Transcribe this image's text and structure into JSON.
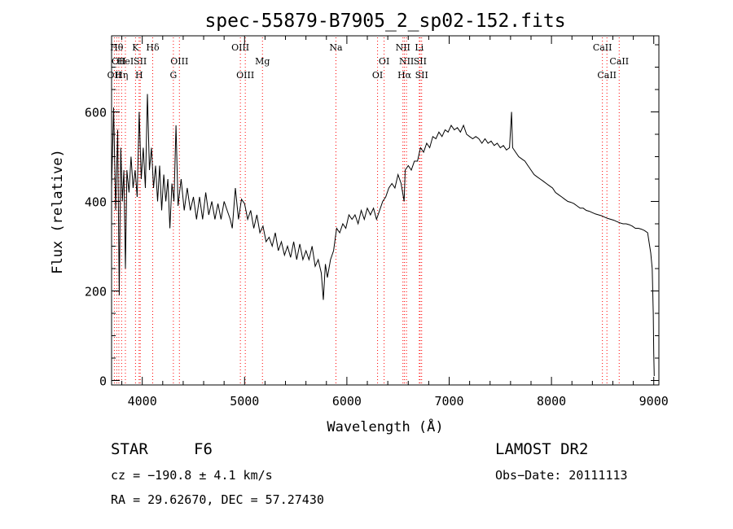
{
  "chart_data": {
    "type": "line",
    "title": "spec-55879-B7905_2_sp02-152.fits",
    "xlabel": "Wavelength (Å)",
    "ylabel": "Flux (relative)",
    "xlim": [
      3700,
      9050
    ],
    "ylim": [
      -10,
      770
    ],
    "x_ticks": [
      4000,
      5000,
      6000,
      7000,
      8000,
      9000
    ],
    "y_ticks": [
      0,
      200,
      400,
      600
    ],
    "line_color": "#000000",
    "marker_color": "#ff0000",
    "series": [
      {
        "points": [
          [
            3700,
            430
          ],
          [
            3720,
            610
          ],
          [
            3740,
            380
          ],
          [
            3760,
            560
          ],
          [
            3775,
            190
          ],
          [
            3790,
            520
          ],
          [
            3805,
            400
          ],
          [
            3820,
            470
          ],
          [
            3835,
            250
          ],
          [
            3850,
            470
          ],
          [
            3870,
            420
          ],
          [
            3890,
            500
          ],
          [
            3910,
            430
          ],
          [
            3930,
            470
          ],
          [
            3950,
            410
          ],
          [
            3970,
            600
          ],
          [
            3990,
            450
          ],
          [
            4010,
            520
          ],
          [
            4030,
            430
          ],
          [
            4050,
            640
          ],
          [
            4070,
            470
          ],
          [
            4090,
            520
          ],
          [
            4110,
            430
          ],
          [
            4130,
            480
          ],
          [
            4150,
            400
          ],
          [
            4170,
            480
          ],
          [
            4190,
            380
          ],
          [
            4210,
            460
          ],
          [
            4230,
            400
          ],
          [
            4250,
            450
          ],
          [
            4270,
            340
          ],
          [
            4290,
            440
          ],
          [
            4310,
            400
          ],
          [
            4330,
            570
          ],
          [
            4350,
            390
          ],
          [
            4380,
            450
          ],
          [
            4410,
            380
          ],
          [
            4440,
            430
          ],
          [
            4470,
            380
          ],
          [
            4500,
            410
          ],
          [
            4530,
            360
          ],
          [
            4560,
            410
          ],
          [
            4590,
            360
          ],
          [
            4620,
            420
          ],
          [
            4650,
            370
          ],
          [
            4680,
            400
          ],
          [
            4710,
            360
          ],
          [
            4740,
            395
          ],
          [
            4770,
            360
          ],
          [
            4800,
            400
          ],
          [
            4830,
            380
          ],
          [
            4860,
            360
          ],
          [
            4880,
            340
          ],
          [
            4910,
            430
          ],
          [
            4940,
            360
          ],
          [
            4970,
            405
          ],
          [
            5000,
            395
          ],
          [
            5030,
            360
          ],
          [
            5060,
            380
          ],
          [
            5090,
            340
          ],
          [
            5120,
            370
          ],
          [
            5150,
            330
          ],
          [
            5180,
            345
          ],
          [
            5210,
            310
          ],
          [
            5240,
            320
          ],
          [
            5270,
            300
          ],
          [
            5300,
            330
          ],
          [
            5330,
            290
          ],
          [
            5360,
            310
          ],
          [
            5390,
            280
          ],
          [
            5420,
            300
          ],
          [
            5450,
            275
          ],
          [
            5480,
            310
          ],
          [
            5510,
            270
          ],
          [
            5540,
            305
          ],
          [
            5570,
            270
          ],
          [
            5600,
            290
          ],
          [
            5630,
            270
          ],
          [
            5660,
            300
          ],
          [
            5690,
            255
          ],
          [
            5720,
            270
          ],
          [
            5750,
            240
          ],
          [
            5770,
            180
          ],
          [
            5790,
            260
          ],
          [
            5810,
            230
          ],
          [
            5840,
            270
          ],
          [
            5870,
            290
          ],
          [
            5900,
            340
          ],
          [
            5930,
            330
          ],
          [
            5960,
            350
          ],
          [
            5990,
            340
          ],
          [
            6020,
            370
          ],
          [
            6050,
            360
          ],
          [
            6080,
            370
          ],
          [
            6110,
            350
          ],
          [
            6140,
            380
          ],
          [
            6170,
            360
          ],
          [
            6200,
            385
          ],
          [
            6230,
            370
          ],
          [
            6260,
            385
          ],
          [
            6290,
            360
          ],
          [
            6320,
            380
          ],
          [
            6350,
            400
          ],
          [
            6380,
            410
          ],
          [
            6410,
            430
          ],
          [
            6440,
            440
          ],
          [
            6470,
            430
          ],
          [
            6500,
            460
          ],
          [
            6530,
            440
          ],
          [
            6560,
            400
          ],
          [
            6570,
            470
          ],
          [
            6600,
            480
          ],
          [
            6630,
            470
          ],
          [
            6660,
            490
          ],
          [
            6690,
            490
          ],
          [
            6720,
            520
          ],
          [
            6750,
            510
          ],
          [
            6780,
            530
          ],
          [
            6810,
            520
          ],
          [
            6840,
            545
          ],
          [
            6870,
            540
          ],
          [
            6900,
            555
          ],
          [
            6930,
            545
          ],
          [
            6960,
            560
          ],
          [
            6990,
            555
          ],
          [
            7020,
            570
          ],
          [
            7050,
            560
          ],
          [
            7080,
            565
          ],
          [
            7110,
            555
          ],
          [
            7140,
            570
          ],
          [
            7170,
            550
          ],
          [
            7200,
            545
          ],
          [
            7230,
            540
          ],
          [
            7260,
            545
          ],
          [
            7290,
            540
          ],
          [
            7320,
            530
          ],
          [
            7350,
            540
          ],
          [
            7380,
            530
          ],
          [
            7410,
            535
          ],
          [
            7440,
            525
          ],
          [
            7470,
            530
          ],
          [
            7500,
            520
          ],
          [
            7530,
            525
          ],
          [
            7560,
            515
          ],
          [
            7590,
            520
          ],
          [
            7610,
            600
          ],
          [
            7620,
            520
          ],
          [
            7650,
            510
          ],
          [
            7680,
            500
          ],
          [
            7710,
            495
          ],
          [
            7740,
            490
          ],
          [
            7770,
            480
          ],
          [
            7800,
            470
          ],
          [
            7830,
            460
          ],
          [
            7860,
            455
          ],
          [
            7890,
            450
          ],
          [
            7920,
            445
          ],
          [
            7950,
            440
          ],
          [
            7980,
            435
          ],
          [
            8010,
            430
          ],
          [
            8040,
            420
          ],
          [
            8070,
            415
          ],
          [
            8100,
            410
          ],
          [
            8130,
            405
          ],
          [
            8160,
            400
          ],
          [
            8190,
            398
          ],
          [
            8220,
            395
          ],
          [
            8250,
            390
          ],
          [
            8280,
            385
          ],
          [
            8310,
            385
          ],
          [
            8340,
            380
          ],
          [
            8370,
            378
          ],
          [
            8400,
            375
          ],
          [
            8430,
            372
          ],
          [
            8460,
            370
          ],
          [
            8490,
            368
          ],
          [
            8520,
            365
          ],
          [
            8550,
            362
          ],
          [
            8580,
            360
          ],
          [
            8610,
            358
          ],
          [
            8640,
            355
          ],
          [
            8670,
            352
          ],
          [
            8700,
            350
          ],
          [
            8730,
            350
          ],
          [
            8760,
            348
          ],
          [
            8790,
            345
          ],
          [
            8820,
            340
          ],
          [
            8850,
            340
          ],
          [
            8880,
            338
          ],
          [
            8910,
            335
          ],
          [
            8940,
            330
          ],
          [
            8960,
            300
          ],
          [
            8970,
            285
          ],
          [
            8985,
            250
          ],
          [
            8995,
            150
          ],
          [
            9000,
            60
          ],
          [
            9005,
            10
          ]
        ]
      }
    ],
    "lines": [
      {
        "x": 3727,
        "row": 2,
        "label": "OII"
      },
      {
        "x": 3750,
        "row": 0,
        "label": "Hθ"
      },
      {
        "x": 3771,
        "row": 1,
        "label": "OII"
      },
      {
        "x": 3798,
        "row": 2,
        "label": "Hη"
      },
      {
        "x": 3835,
        "row": 1,
        "label": "HeI"
      },
      {
        "x": 3934,
        "row": 0,
        "label": "K"
      },
      {
        "x": 3969,
        "row": 2,
        "label": "H"
      },
      {
        "x": 3980,
        "row": 1,
        "label": "SII"
      },
      {
        "x": 4102,
        "row": 0,
        "label": "Hδ"
      },
      {
        "x": 4304,
        "row": 2,
        "label": "G"
      },
      {
        "x": 4363,
        "row": 1,
        "label": "OIII"
      },
      {
        "x": 4959,
        "row": 0,
        "label": "OIII"
      },
      {
        "x": 5007,
        "row": 2,
        "label": "OIII"
      },
      {
        "x": 5175,
        "row": 1,
        "label": "Mg"
      },
      {
        "x": 5893,
        "row": 0,
        "label": "Na"
      },
      {
        "x": 6300,
        "row": 2,
        "label": "OI"
      },
      {
        "x": 6364,
        "row": 1,
        "label": "OI"
      },
      {
        "x": 6548,
        "row": 0,
        "label": "NII"
      },
      {
        "x": 6563,
        "row": 2,
        "label": "Hα"
      },
      {
        "x": 6583,
        "row": 1,
        "label": "NII"
      },
      {
        "x": 6708,
        "row": 0,
        "label": "Li"
      },
      {
        "x": 6716,
        "row": 1,
        "label": "SII"
      },
      {
        "x": 6731,
        "row": 2,
        "label": "SII"
      },
      {
        "x": 8498,
        "row": 0,
        "label": "CaII"
      },
      {
        "x": 8542,
        "row": 2,
        "label": "CaII"
      },
      {
        "x": 8662,
        "row": 1,
        "label": "CaII"
      }
    ]
  },
  "info": {
    "class": "STAR",
    "subclass": "F6",
    "survey": "LAMOST DR2",
    "cz": "cz = −190.8 ± 4.1 km/s",
    "obs_date": "Obs−Date: 20111113",
    "coords": "RA =  29.62670, DEC =  57.27430"
  }
}
